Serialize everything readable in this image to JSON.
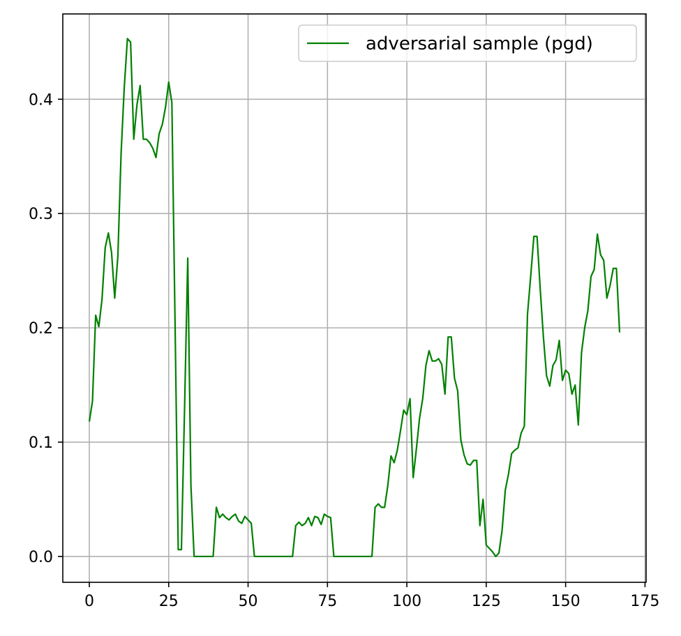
{
  "chart_data": {
    "type": "line",
    "title": "",
    "xlabel": "",
    "ylabel": "",
    "xlim": [
      -8.35,
      175.35
    ],
    "ylim": [
      -0.0226,
      0.4746
    ],
    "grid": true,
    "legend_position": "top-right",
    "x_ticks": [
      0,
      25,
      50,
      75,
      100,
      125,
      150,
      175
    ],
    "y_ticks": [
      0.0,
      0.1,
      0.2,
      0.3,
      0.4
    ],
    "x_tick_labels": [
      "0",
      "25",
      "50",
      "75",
      "100",
      "125",
      "150",
      "175"
    ],
    "y_tick_labels": [
      "0.0",
      "0.1",
      "0.2",
      "0.3",
      "0.4"
    ],
    "series": [
      {
        "name": "adversarial sample (pgd)",
        "color": "#008000",
        "x": [
          0,
          1,
          2,
          3,
          4,
          5,
          6,
          7,
          8,
          9,
          10,
          11,
          12,
          13,
          14,
          15,
          16,
          17,
          18,
          19,
          20,
          21,
          22,
          23,
          24,
          25,
          26,
          27,
          28,
          29,
          30,
          31,
          32,
          33,
          34,
          35,
          36,
          37,
          38,
          39,
          40,
          41,
          42,
          43,
          44,
          45,
          46,
          47,
          48,
          49,
          50,
          51,
          52,
          53,
          54,
          55,
          56,
          57,
          58,
          59,
          60,
          61,
          62,
          63,
          64,
          65,
          66,
          67,
          68,
          69,
          70,
          71,
          72,
          73,
          74,
          75,
          76,
          77,
          78,
          79,
          80,
          81,
          82,
          83,
          84,
          85,
          86,
          87,
          88,
          89,
          90,
          91,
          92,
          93,
          94,
          95,
          96,
          97,
          98,
          99,
          100,
          101,
          102,
          103,
          104,
          105,
          106,
          107,
          108,
          109,
          110,
          111,
          112,
          113,
          114,
          115,
          116,
          117,
          118,
          119,
          120,
          121,
          122,
          123,
          124,
          125,
          126,
          127,
          128,
          129,
          130,
          131,
          132,
          133,
          134,
          135,
          136,
          137,
          138,
          139,
          140,
          141,
          142,
          143,
          144,
          145,
          146,
          147,
          148,
          149,
          150,
          151,
          152,
          153,
          154,
          155,
          156,
          157,
          158,
          159,
          160,
          161,
          162,
          163,
          164,
          165,
          166,
          167
        ],
        "values": [
          0.118,
          0.136,
          0.211,
          0.201,
          0.225,
          0.27,
          0.283,
          0.266,
          0.226,
          0.263,
          0.352,
          0.41,
          0.453,
          0.45,
          0.365,
          0.395,
          0.412,
          0.365,
          0.365,
          0.362,
          0.357,
          0.349,
          0.37,
          0.378,
          0.393,
          0.415,
          0.397,
          0.205,
          0.006,
          0.006,
          0.13,
          0.261,
          0.062,
          0.0,
          0.0,
          0.0,
          0.0,
          0.0,
          0.0,
          0.0,
          0.043,
          0.034,
          0.037,
          0.034,
          0.032,
          0.035,
          0.037,
          0.031,
          0.029,
          0.035,
          0.032,
          0.029,
          0.0,
          0.0,
          0.0,
          0.0,
          0.0,
          0.0,
          0.0,
          0.0,
          0.0,
          0.0,
          0.0,
          0.0,
          0.0,
          0.027,
          0.03,
          0.027,
          0.029,
          0.034,
          0.027,
          0.035,
          0.034,
          0.028,
          0.037,
          0.035,
          0.034,
          0.0,
          0.0,
          0.0,
          0.0,
          0.0,
          0.0,
          0.0,
          0.0,
          0.0,
          0.0,
          0.0,
          0.0,
          0.0,
          0.043,
          0.046,
          0.043,
          0.043,
          0.062,
          0.088,
          0.082,
          0.093,
          0.11,
          0.128,
          0.124,
          0.138,
          0.069,
          0.094,
          0.121,
          0.138,
          0.167,
          0.18,
          0.171,
          0.171,
          0.173,
          0.168,
          0.142,
          0.192,
          0.192,
          0.156,
          0.145,
          0.102,
          0.089,
          0.081,
          0.08,
          0.084,
          0.084,
          0.027,
          0.05,
          0.01,
          0.007,
          0.004,
          0.0,
          0.003,
          0.023,
          0.058,
          0.072,
          0.09,
          0.093,
          0.095,
          0.108,
          0.114,
          0.212,
          0.245,
          0.28,
          0.28,
          0.234,
          0.192,
          0.158,
          0.149,
          0.167,
          0.172,
          0.189,
          0.154,
          0.163,
          0.16,
          0.142,
          0.15,
          0.115,
          0.178,
          0.2,
          0.215,
          0.245,
          0.251,
          0.282,
          0.264,
          0.259,
          0.226,
          0.237,
          0.252,
          0.252,
          0.196
        ]
      }
    ]
  }
}
